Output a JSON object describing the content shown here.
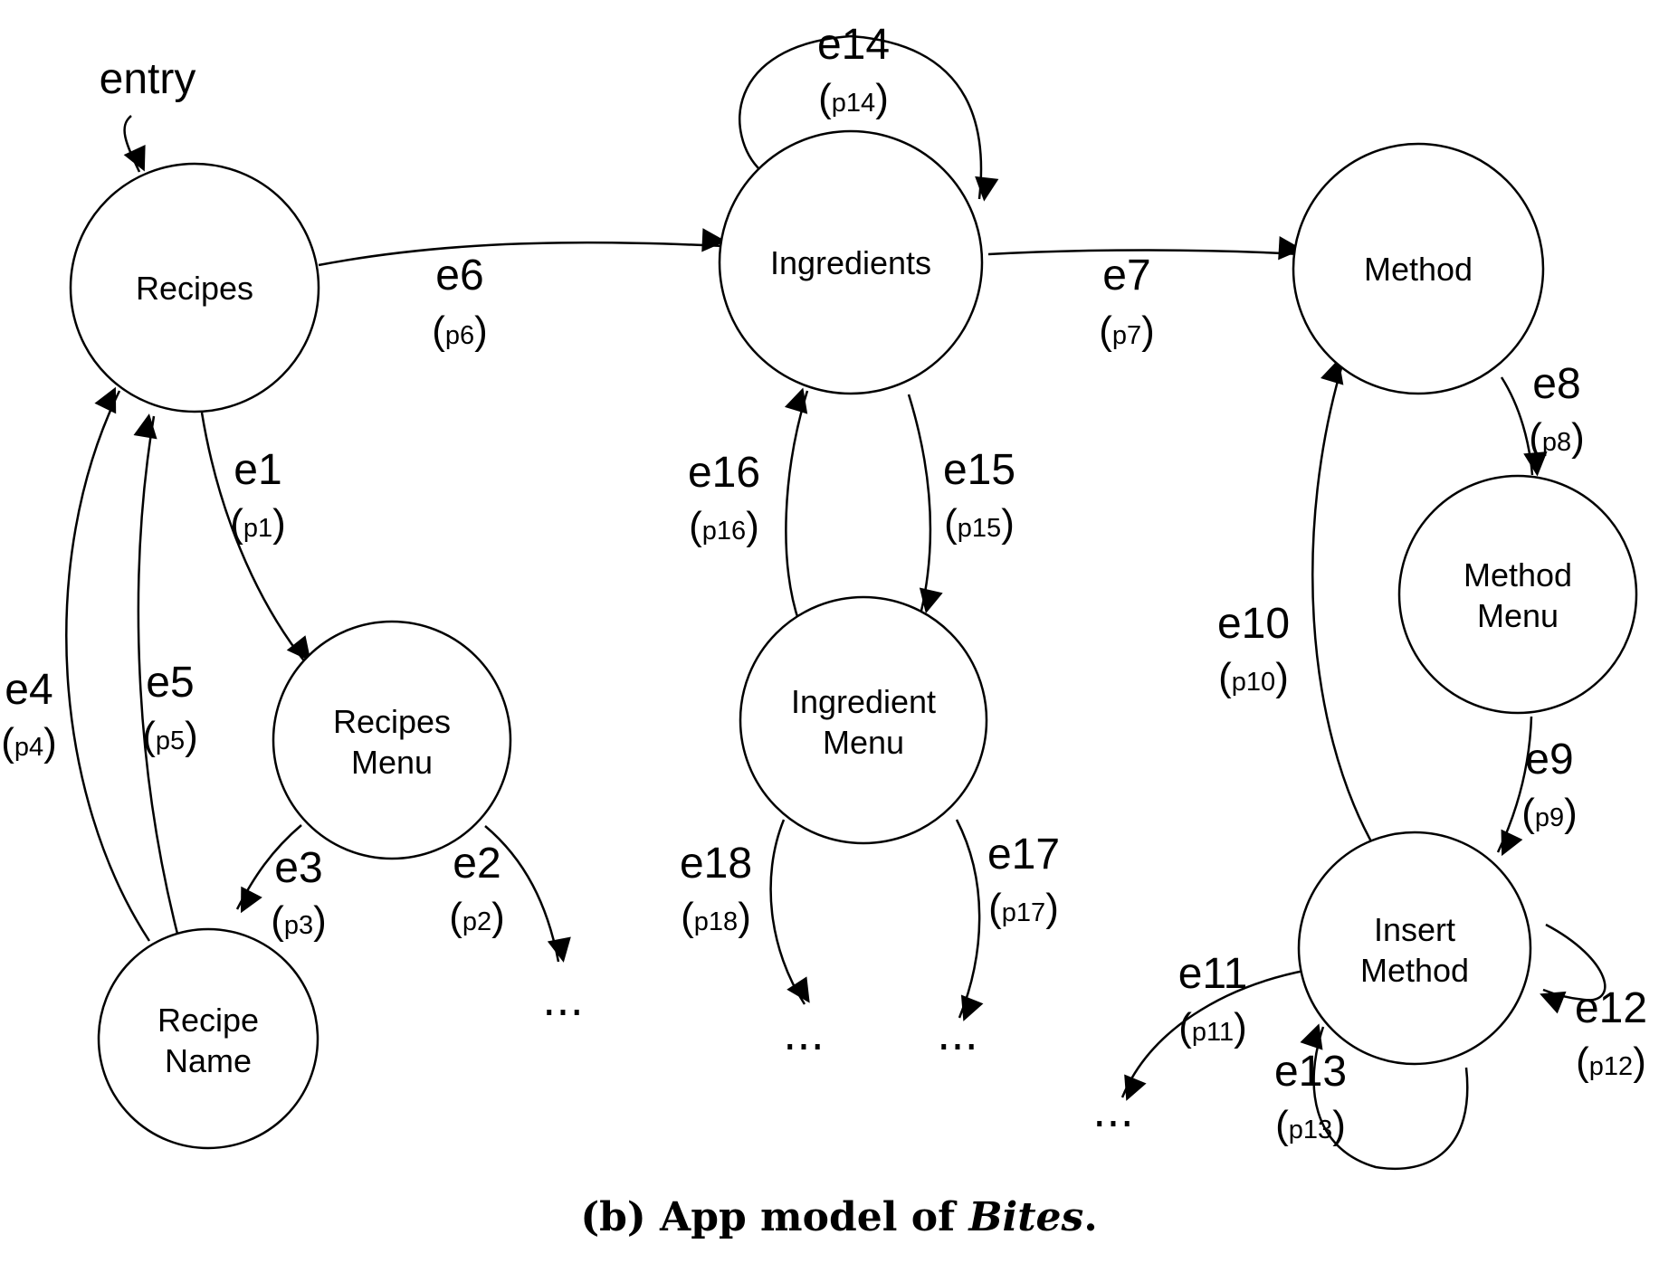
{
  "entry_label": "entry",
  "nodes": {
    "recipes": [
      "Recipes"
    ],
    "recipes_menu": [
      "Recipes",
      "Menu"
    ],
    "recipe_name": [
      "Recipe",
      "Name"
    ],
    "ingredients": [
      "Ingredients"
    ],
    "ingredient_menu": [
      "Ingredient",
      "Menu"
    ],
    "method": [
      "Method"
    ],
    "method_menu": [
      "Method",
      "Menu"
    ],
    "insert_method": [
      "Insert",
      "Method"
    ]
  },
  "edges": {
    "e1": {
      "label": "e1",
      "param": "p1"
    },
    "e2": {
      "label": "e2",
      "param": "p2"
    },
    "e3": {
      "label": "e3",
      "param": "p3"
    },
    "e4": {
      "label": "e4",
      "param": "p4"
    },
    "e5": {
      "label": "e5",
      "param": "p5"
    },
    "e6": {
      "label": "e6",
      "param": "p6"
    },
    "e7": {
      "label": "e7",
      "param": "p7"
    },
    "e8": {
      "label": "e8",
      "param": "p8"
    },
    "e9": {
      "label": "e9",
      "param": "p9"
    },
    "e10": {
      "label": "e10",
      "param": "p10"
    },
    "e11": {
      "label": "e11",
      "param": "p11"
    },
    "e12": {
      "label": "e12",
      "param": "p12"
    },
    "e13": {
      "label": "e13",
      "param": "p13"
    },
    "e14": {
      "label": "e14",
      "param": "p14"
    },
    "e15": {
      "label": "e15",
      "param": "p15"
    },
    "e16": {
      "label": "e16",
      "param": "p16"
    },
    "e17": {
      "label": "e17",
      "param": "p17"
    },
    "e18": {
      "label": "e18",
      "param": "p18"
    }
  },
  "ellipsis": "...",
  "caption": {
    "prefix": "(b) App model of ",
    "app_name": "Bites",
    "suffix": "."
  }
}
